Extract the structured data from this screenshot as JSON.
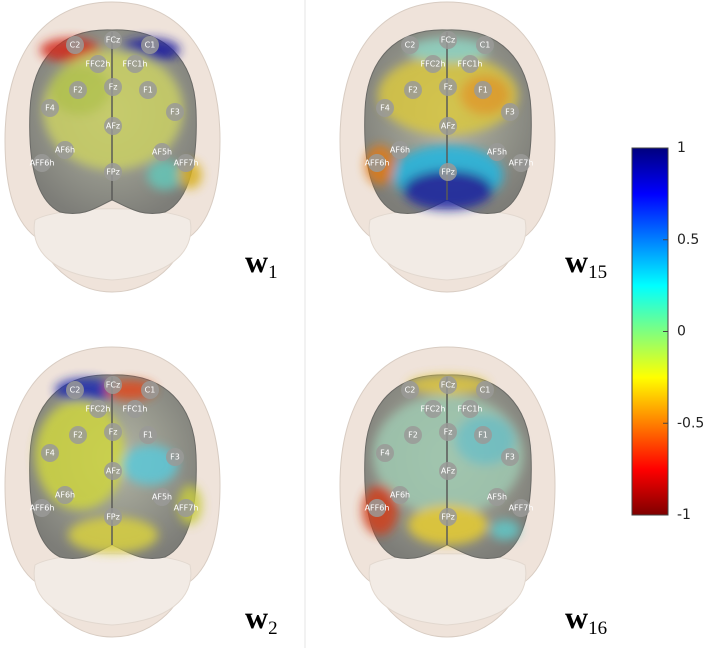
{
  "electrodes": [
    "C2",
    "C1",
    "FCz",
    "FFC2h",
    "FFC1h",
    "F2",
    "Fz",
    "F1",
    "F4",
    "F3",
    "AFz",
    "AF6h",
    "AF5h",
    "AFF6h",
    "AFF7h",
    "FPz"
  ],
  "panels": [
    {
      "symbol": "w",
      "subscript": "1"
    },
    {
      "symbol": "w",
      "subscript": "15"
    },
    {
      "symbol": "w",
      "subscript": "2"
    },
    {
      "symbol": "w",
      "subscript": "16"
    }
  ],
  "colorbar": {
    "lim": [
      -1,
      1
    ],
    "ticks": [
      1,
      0.5,
      0,
      -0.5,
      -1
    ]
  }
}
